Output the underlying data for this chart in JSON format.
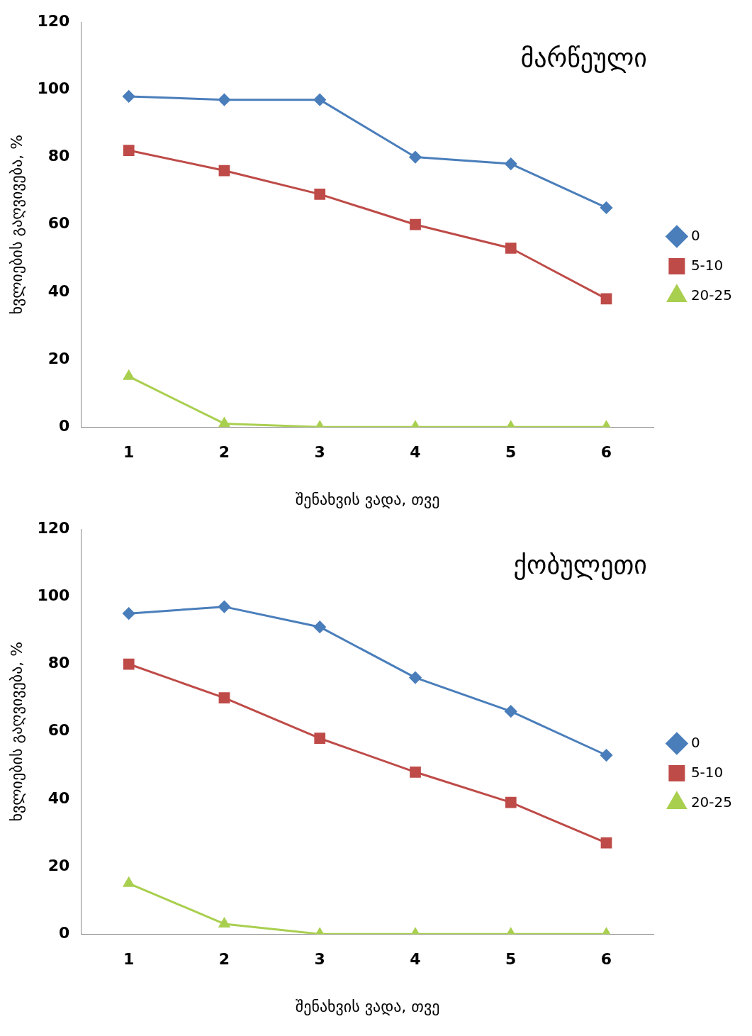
{
  "chart_data": [
    {
      "type": "line",
      "title": "მარწეული",
      "xlabel": "შენახვის ვადა, თვე",
      "ylabel": "ხვლიების გაღვივება, %",
      "categories": [
        "1",
        "2",
        "3",
        "4",
        "5",
        "6"
      ],
      "ylim": [
        0,
        120
      ],
      "yticks": [
        0,
        20,
        40,
        60,
        80,
        100,
        120
      ],
      "grid": false,
      "legend": "right",
      "series": [
        {
          "name": "0",
          "color": "#4a7ebb",
          "marker": "diamond",
          "values": [
            98,
            97,
            97,
            80,
            78,
            65
          ]
        },
        {
          "name": "5-10",
          "color": "#be4b48",
          "marker": "square",
          "values": [
            82,
            76,
            69,
            60,
            53,
            38
          ]
        },
        {
          "name": "20-25",
          "color": "#a9cf4f",
          "marker": "triangle",
          "values": [
            15,
            1,
            0,
            0,
            0,
            0
          ]
        }
      ]
    },
    {
      "type": "line",
      "title": "ქობულეთი",
      "xlabel": "შენახვის ვადა, თვე",
      "ylabel": "ხვლიების გაღვივება, %",
      "categories": [
        "1",
        "2",
        "3",
        "4",
        "5",
        "6"
      ],
      "ylim": [
        0,
        120
      ],
      "yticks": [
        0,
        20,
        40,
        60,
        80,
        100,
        120
      ],
      "grid": false,
      "legend": "right",
      "series": [
        {
          "name": "0",
          "color": "#4a7ebb",
          "marker": "diamond",
          "values": [
            95,
            97,
            91,
            76,
            66,
            53
          ]
        },
        {
          "name": "5-10",
          "color": "#be4b48",
          "marker": "square",
          "values": [
            80,
            70,
            58,
            48,
            39,
            27
          ]
        },
        {
          "name": "20-25",
          "color": "#a9cf4f",
          "marker": "triangle",
          "values": [
            15,
            3,
            0,
            0,
            0,
            0
          ]
        }
      ]
    }
  ]
}
